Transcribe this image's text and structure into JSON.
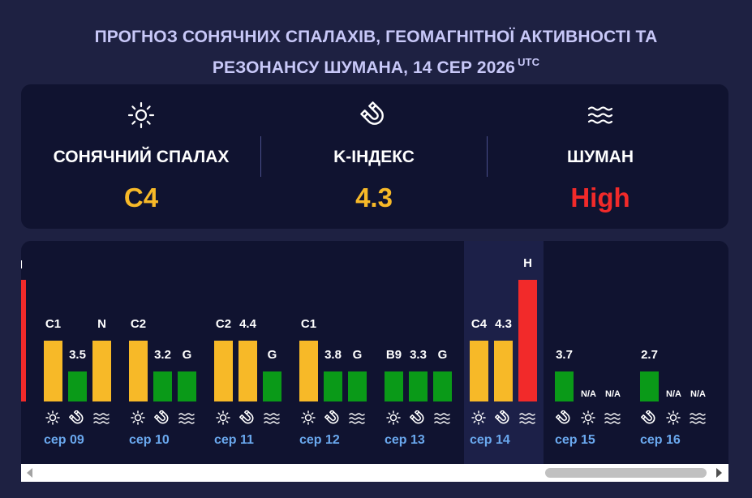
{
  "header": {
    "title_line1": "ПРОГНОЗ СОНЯЧНИХ СПАЛАХІВ, ГЕОМАГНІТНОЇ АКТИВНОСТІ ТА",
    "title_line2": "РЕЗОНАНСУ ШУМАНА, 14 СЕР 2026",
    "title_suffix": "UTC"
  },
  "summary": {
    "flare": {
      "label": "СОНЯЧНИЙ СПАЛАХ",
      "value": "C4",
      "icon": "sun-icon",
      "color": "#f7b928"
    },
    "kindex": {
      "label": "K-ІНДЕКС",
      "value": "4.3",
      "icon": "magnet-icon",
      "color": "#f7b928"
    },
    "schumann": {
      "label": "ШУМАН",
      "value": "High",
      "icon": "waves-icon",
      "color": "#f22a2a"
    }
  },
  "colors": {
    "yellow": "#f7b928",
    "green": "#0a9a18",
    "red": "#f22a2a",
    "day": "#6aa8ee"
  },
  "timeline": {
    "days": [
      {
        "label": "сер 09",
        "flare": "C1",
        "k": "3.5",
        "s": "N"
      },
      {
        "label": "сер 10",
        "flare": "C2",
        "k": "3.2",
        "s": "G"
      },
      {
        "label": "сер 11",
        "flare": "C2",
        "k": "4.4",
        "s": "G"
      },
      {
        "label": "сер 12",
        "flare": "C1",
        "k": "3.8",
        "s": "G"
      },
      {
        "label": "сер 13",
        "flare": "B9",
        "k": "3.3",
        "s": "G"
      },
      {
        "label": "сер 14",
        "flare": "C4",
        "k": "4.3",
        "s": "H"
      },
      {
        "label": "сер 15",
        "k": "3.7",
        "flare": "N/A",
        "s": "N/A"
      },
      {
        "label": "сер 16",
        "k": "2.7",
        "flare": "N/A",
        "s": "N/A"
      }
    ]
  }
}
